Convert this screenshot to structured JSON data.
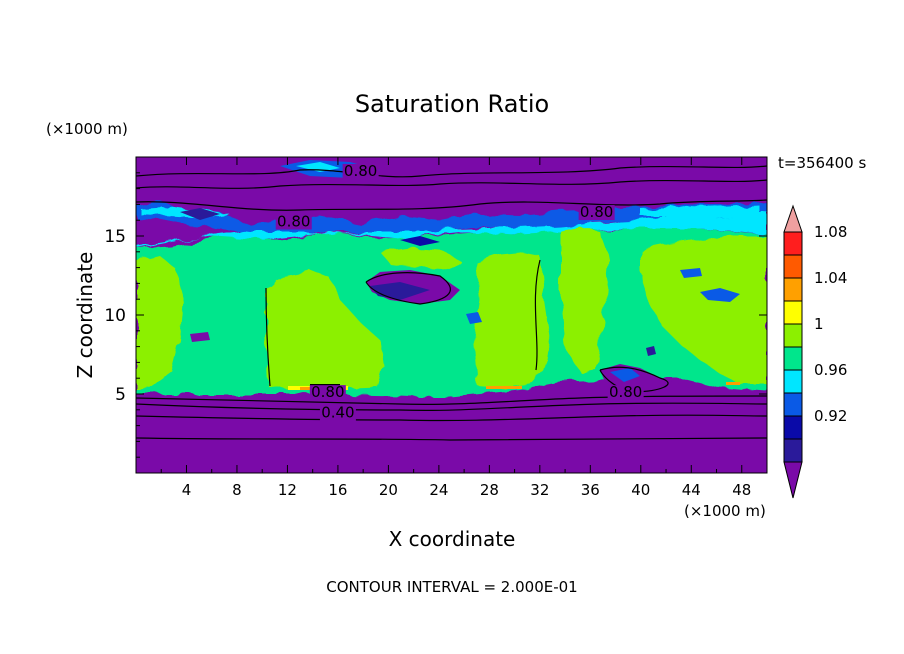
{
  "chart_data": {
    "type": "heatmap",
    "title": "Saturation Ratio",
    "time_label": "t=356400 s",
    "xlabel": "X coordinate",
    "ylabel": "Z coordinate",
    "x_unit": "(×1000 m)",
    "y_unit": "(×1000 m)",
    "xlim": [
      0,
      50
    ],
    "ylim": [
      0,
      20
    ],
    "x_ticks": [
      4,
      8,
      12,
      16,
      20,
      24,
      28,
      32,
      36,
      40,
      44,
      48
    ],
    "y_ticks": [
      5,
      10,
      15
    ],
    "footer": "CONTOUR INTERVAL = 2.000E-01",
    "colorbar": {
      "levels": [
        0.92,
        0.96,
        1,
        1.04,
        1.08
      ],
      "labels": [
        "0.92",
        "0.96",
        "1",
        "1.04",
        "1.08"
      ],
      "colors": [
        "#7a0aa8",
        "#2a1a9a",
        "#0a0aa8",
        "#0a5ae6",
        "#00e6ff",
        "#00e68c",
        "#8cf000",
        "#ffff00",
        "#ffa000",
        "#ff5a00",
        "#ff1e1e",
        "#f0a0a0"
      ]
    },
    "contour_labels": [
      {
        "text": "0.80",
        "x": 17.8,
        "z": 18.8
      },
      {
        "text": "0.80",
        "x": 12.5,
        "z": 15.6
      },
      {
        "text": "0.80",
        "x": 36.5,
        "z": 16.2
      },
      {
        "text": "0.80",
        "x": 15.2,
        "z": 4.8
      },
      {
        "text": "0.80",
        "x": 38.8,
        "z": 4.8
      },
      {
        "text": "0.40",
        "x": 16.0,
        "z": 3.5
      }
    ],
    "regions": [
      {
        "level": "<0.92",
        "z_range": [
          0,
          5.0
        ],
        "x_range": [
          0,
          50
        ]
      },
      {
        "level": "1.00",
        "z_range": [
          5.0,
          14.5
        ],
        "x_range": [
          0,
          50
        ]
      },
      {
        "level": "1.02",
        "z_range": [
          5.0,
          12.5
        ],
        "x_range": [
          10,
          20
        ]
      },
      {
        "level": "<0.92",
        "z_range": [
          16.5,
          20
        ],
        "x_range": [
          0,
          50
        ]
      }
    ]
  }
}
